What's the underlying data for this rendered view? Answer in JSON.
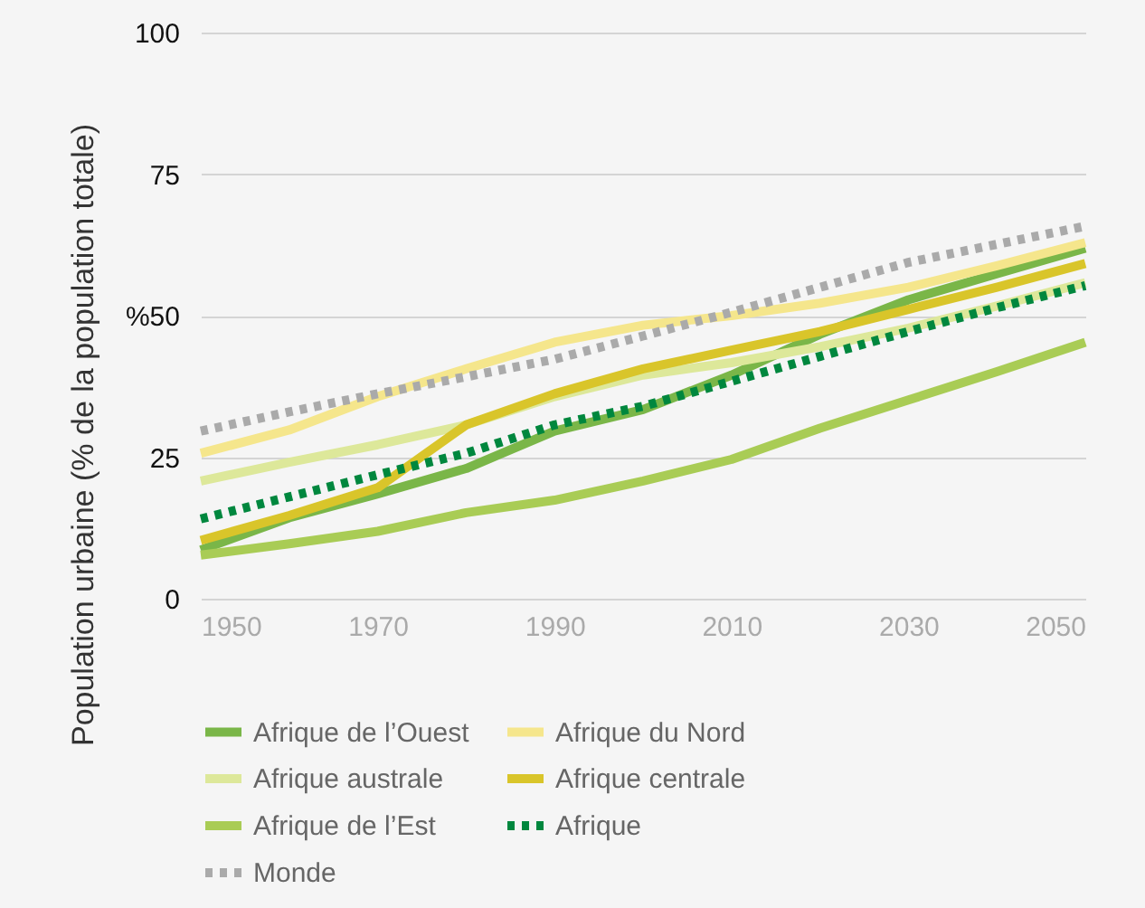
{
  "chart_data": {
    "type": "line",
    "ylabel": "Population urbaine (% de la population totale)",
    "x": [
      1950,
      1960,
      1970,
      1980,
      1990,
      2000,
      2010,
      2020,
      2030,
      2040,
      2050
    ],
    "xlim": [
      1950,
      2050
    ],
    "xticks": [
      1950,
      1970,
      1990,
      2010,
      2030,
      2050
    ],
    "ylim": [
      0,
      100
    ],
    "yticks": [
      0,
      25,
      {
        "value": 50,
        "label": "%50"
      },
      75,
      100
    ],
    "grid": "y",
    "legend": "bottom",
    "series": [
      {
        "name": "Afrique de l’Ouest",
        "color": "#7ab648",
        "line_style": "solid",
        "values": [
          8.6,
          14.3,
          18.5,
          23,
          29.6,
          33.4,
          39.5,
          46.7,
          52.8,
          57.4,
          61.9
        ]
      },
      {
        "name": "Afrique du Nord",
        "color": "#f5e68c",
        "line_style": "solid",
        "values": [
          25.7,
          29.8,
          35.7,
          40.6,
          45.3,
          48.3,
          50,
          52.2,
          55,
          58.8,
          62.9
        ]
      },
      {
        "name": "Afrique australe",
        "color": "#dde89a",
        "line_style": "solid",
        "values": [
          20.8,
          24.1,
          27.2,
          30.7,
          35.7,
          39.5,
          41.7,
          44.5,
          47.8,
          51.7,
          55.8
        ]
      },
      {
        "name": "Afrique centrale",
        "color": "#d9c52a",
        "line_style": "solid",
        "values": [
          10.3,
          14.7,
          19.6,
          30.7,
          36.2,
          40.6,
          43.9,
          47.2,
          51.1,
          55,
          59.2
        ]
      },
      {
        "name": "Afrique de l’Est",
        "color": "#a9cc55",
        "line_style": "solid",
        "values": [
          7.7,
          9.7,
          11.9,
          15.2,
          17.4,
          20.8,
          24.6,
          30.1,
          35.1,
          40.1,
          45.3
        ]
      },
      {
        "name": "Afrique",
        "color": "#00873e",
        "line_style": "dotted",
        "values": [
          14.1,
          18,
          21.9,
          25.7,
          30.7,
          34,
          38.4,
          42.8,
          47.2,
          51.4,
          55.3
        ]
      },
      {
        "name": "Monde",
        "color": "#aaaaaa",
        "line_style": "dotted",
        "values": [
          29.6,
          33,
          36.2,
          39.2,
          42.3,
          46.4,
          50.6,
          55,
          59.4,
          62.6,
          65.8
        ]
      }
    ]
  }
}
